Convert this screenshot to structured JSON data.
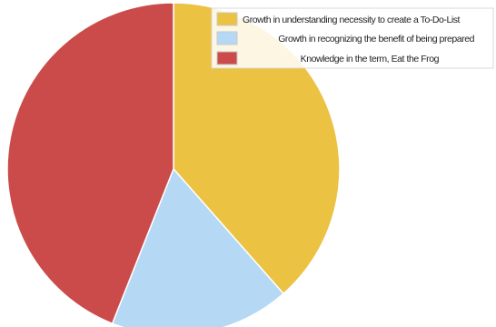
{
  "chart_data": {
    "type": "pie",
    "categories": [
      "Growth in understanding necessity to create a To-Do-List",
      "Growth in recognizing the benefit of being prepared",
      "Knowledge in the term, Eat the Frog"
    ],
    "values": [
      38.5,
      17.5,
      44.0
    ],
    "colors": [
      "#EBC242",
      "#B5D8F5",
      "#CB4B4B"
    ],
    "legend_position": "top-right",
    "start_angle": "top, clockwise"
  }
}
